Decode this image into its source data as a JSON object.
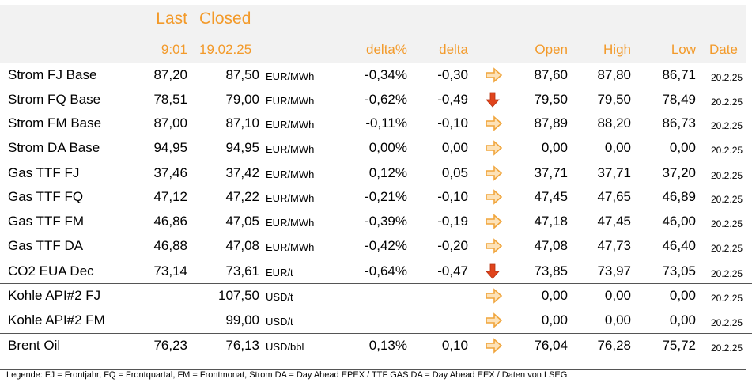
{
  "header": {
    "last": "Last",
    "closed": "Closed",
    "last_time": "9:01",
    "closed_date": "19.02.25",
    "delta_pct": "delta%",
    "delta": "delta",
    "open": "Open",
    "high": "High",
    "low": "Low",
    "date": "Date"
  },
  "rows": [
    {
      "name": "Strom FJ Base",
      "last": "87,20",
      "closed": "87,50",
      "unit": "EUR/MWh",
      "delta_pct": "-0,34%",
      "delta": "-0,30",
      "trend": "right-arrow",
      "open": "87,60",
      "high": "87,80",
      "low": "86,71",
      "date": "20.2.25"
    },
    {
      "name": "Strom FQ Base",
      "last": "78,51",
      "closed": "79,00",
      "unit": "EUR/MWh",
      "delta_pct": "-0,62%",
      "delta": "-0,49",
      "trend": "down-arrow",
      "open": "79,50",
      "high": "79,50",
      "low": "78,49",
      "date": "20.2.25"
    },
    {
      "name": "Strom FM Base",
      "last": "87,00",
      "closed": "87,10",
      "unit": "EUR/MWh",
      "delta_pct": "-0,11%",
      "delta": "-0,10",
      "trend": "right-arrow",
      "open": "87,89",
      "high": "88,20",
      "low": "86,73",
      "date": "20.2.25"
    },
    {
      "name": "Strom DA Base",
      "last": "94,95",
      "closed": "94,95",
      "unit": "EUR/MWh",
      "delta_pct": "0,00%",
      "delta": "0,00",
      "trend": "right-arrow",
      "open": "0,00",
      "high": "0,00",
      "low": "0,00",
      "date": "20.2.25"
    },
    {
      "name": "Gas TTF FJ",
      "last": "37,46",
      "closed": "37,42",
      "unit": "EUR/MWh",
      "delta_pct": "0,12%",
      "delta": "0,05",
      "trend": "right-arrow",
      "open": "37,71",
      "high": "37,71",
      "low": "37,20",
      "date": "20.2.25"
    },
    {
      "name": "Gas TTF FQ",
      "last": "47,12",
      "closed": "47,22",
      "unit": "EUR/MWh",
      "delta_pct": "-0,21%",
      "delta": "-0,10",
      "trend": "right-arrow",
      "open": "47,45",
      "high": "47,65",
      "low": "46,89",
      "date": "20.2.25"
    },
    {
      "name": "Gas TTF FM",
      "last": "46,86",
      "closed": "47,05",
      "unit": "EUR/MWh",
      "delta_pct": "-0,39%",
      "delta": "-0,19",
      "trend": "right-arrow",
      "open": "47,18",
      "high": "47,45",
      "low": "46,00",
      "date": "20.2.25"
    },
    {
      "name": "Gas TTF DA",
      "last": "46,88",
      "closed": "47,08",
      "unit": "EUR/MWh",
      "delta_pct": "-0,42%",
      "delta": "-0,20",
      "trend": "right-arrow",
      "open": "47,08",
      "high": "47,73",
      "low": "46,40",
      "date": "20.2.25"
    },
    {
      "name": "CO2 EUA Dec",
      "last": "73,14",
      "closed": "73,61",
      "unit": "EUR/t",
      "delta_pct": "-0,64%",
      "delta": "-0,47",
      "trend": "down-arrow",
      "open": "73,85",
      "high": "73,97",
      "low": "73,05",
      "date": "20.2.25"
    },
    {
      "name": "Kohle API#2 FJ",
      "last": "",
      "closed": "107,50",
      "unit": "USD/t",
      "delta_pct": "",
      "delta": "",
      "trend": "right-arrow",
      "open": "0,00",
      "high": "0,00",
      "low": "0,00",
      "date": "20.2.25"
    },
    {
      "name": "Kohle API#2 FM",
      "last": "",
      "closed": "99,00",
      "unit": "USD/t",
      "delta_pct": "",
      "delta": "",
      "trend": "right-arrow",
      "open": "0,00",
      "high": "0,00",
      "low": "0,00",
      "date": "20.2.25"
    },
    {
      "name": "Brent Oil",
      "last": "76,23",
      "closed": "76,13",
      "unit": "USD/bbl",
      "delta_pct": "0,13%",
      "delta": "0,10",
      "trend": "right-arrow",
      "open": "76,04",
      "high": "76,28",
      "low": "75,72",
      "date": "20.2.25"
    }
  ],
  "colors": {
    "accent": "#f39a2a",
    "down_arrow": "#e0441c",
    "right_arrow": "#f0a53c"
  },
  "legend": "Legende: FJ = Frontjahr, FQ = Frontquartal, FM = Frontmonat, Strom DA = Day Ahead EPEX / TTF GAS DA = Day Ahead EEX / Daten von LSEG"
}
